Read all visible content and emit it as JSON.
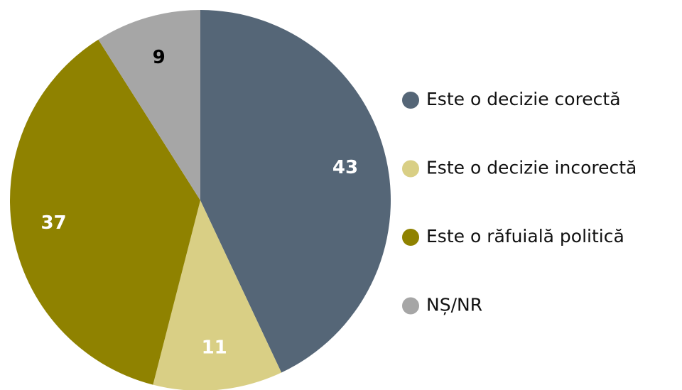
{
  "chart_data": {
    "type": "pie",
    "categories": [
      "Este o decizie corectă",
      "Este o decizie incorectă",
      "Este o răfuială politică",
      "NȘ/NR"
    ],
    "values": [
      43,
      11,
      37,
      9
    ],
    "colors": [
      "#556677",
      "#d9cf85",
      "#8f8200",
      "#a6a6a6"
    ],
    "legend": "right"
  }
}
